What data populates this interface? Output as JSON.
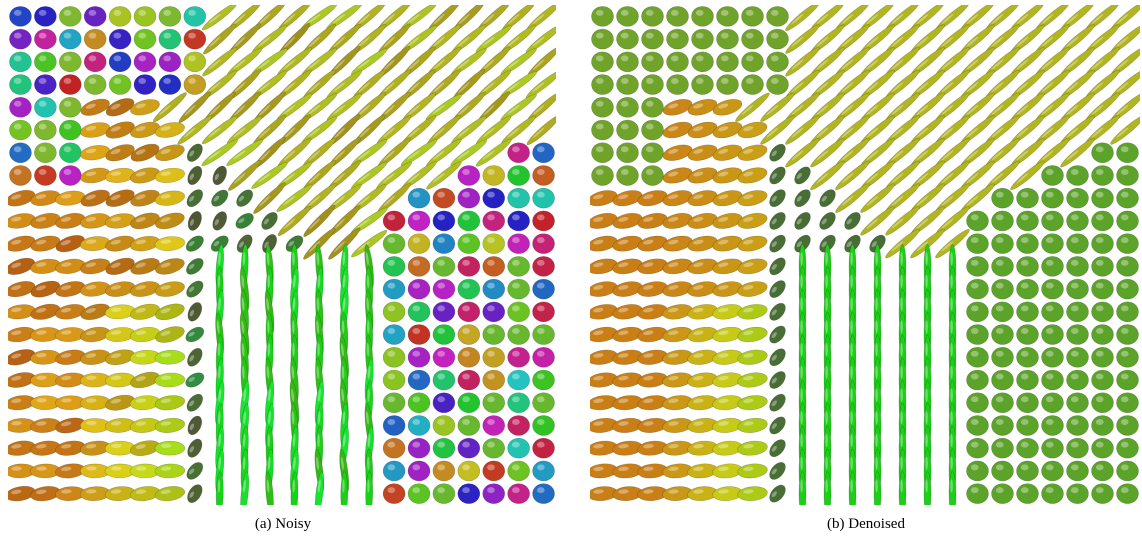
{
  "figure": {
    "panels": [
      {
        "caption": "(a) Noisy"
      },
      {
        "caption": "(b) Denoised"
      }
    ]
  }
}
